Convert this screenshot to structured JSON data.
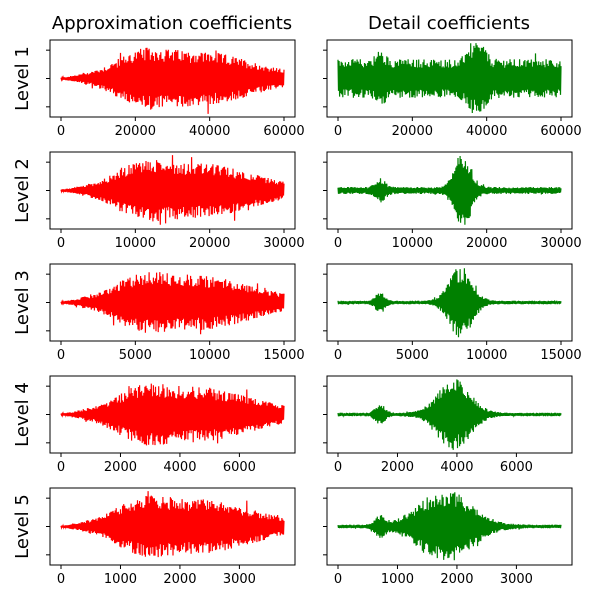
{
  "figure": {
    "column_titles": [
      "Approximation coefficients",
      "Detail coefficients"
    ],
    "row_labels": [
      "Level 1",
      "Level 2",
      "Level 3",
      "Level 4",
      "Level 5"
    ]
  },
  "colors": {
    "approximation": "#ff0000",
    "detail": "#008000"
  },
  "chart_data": [
    {
      "type": "line",
      "level": 1,
      "panel": "approximation",
      "xlim": [
        0,
        60000
      ],
      "xticks": [
        0,
        20000,
        40000,
        60000
      ],
      "ylim": [
        -1,
        1
      ],
      "x_length": 60000
    },
    {
      "type": "line",
      "level": 1,
      "panel": "detail",
      "xlim": [
        0,
        60000
      ],
      "xticks": [
        0,
        20000,
        40000,
        60000
      ],
      "ylim": [
        -1,
        1
      ],
      "x_length": 60000
    },
    {
      "type": "line",
      "level": 2,
      "panel": "approximation",
      "xlim": [
        0,
        30000
      ],
      "xticks": [
        0,
        10000,
        20000,
        30000
      ],
      "ylim": [
        -1,
        1
      ],
      "x_length": 30000
    },
    {
      "type": "line",
      "level": 2,
      "panel": "detail",
      "xlim": [
        0,
        30000
      ],
      "xticks": [
        0,
        10000,
        20000,
        30000
      ],
      "ylim": [
        -1,
        1
      ],
      "x_length": 30000
    },
    {
      "type": "line",
      "level": 3,
      "panel": "approximation",
      "xlim": [
        0,
        15000
      ],
      "xticks": [
        0,
        5000,
        10000,
        15000
      ],
      "ylim": [
        -1,
        1
      ],
      "x_length": 15000
    },
    {
      "type": "line",
      "level": 3,
      "panel": "detail",
      "xlim": [
        0,
        15000
      ],
      "xticks": [
        0,
        5000,
        10000,
        15000
      ],
      "ylim": [
        -1,
        1
      ],
      "x_length": 15000
    },
    {
      "type": "line",
      "level": 4,
      "panel": "approximation",
      "xlim": [
        0,
        7500
      ],
      "xticks": [
        0,
        2000,
        4000,
        6000
      ],
      "ylim": [
        -1,
        1
      ],
      "x_length": 7500
    },
    {
      "type": "line",
      "level": 4,
      "panel": "detail",
      "xlim": [
        0,
        7500
      ],
      "xticks": [
        0,
        2000,
        4000,
        6000
      ],
      "ylim": [
        -1,
        1
      ],
      "x_length": 7500
    },
    {
      "type": "line",
      "level": 5,
      "panel": "approximation",
      "xlim": [
        0,
        3750
      ],
      "xticks": [
        0,
        1000,
        2000,
        3000
      ],
      "ylim": [
        -1,
        1
      ],
      "x_length": 3750
    },
    {
      "type": "line",
      "level": 5,
      "panel": "detail",
      "xlim": [
        0,
        3750
      ],
      "xticks": [
        0,
        1000,
        2000,
        3000
      ],
      "ylim": [
        -1,
        1
      ],
      "x_length": 3750
    }
  ]
}
